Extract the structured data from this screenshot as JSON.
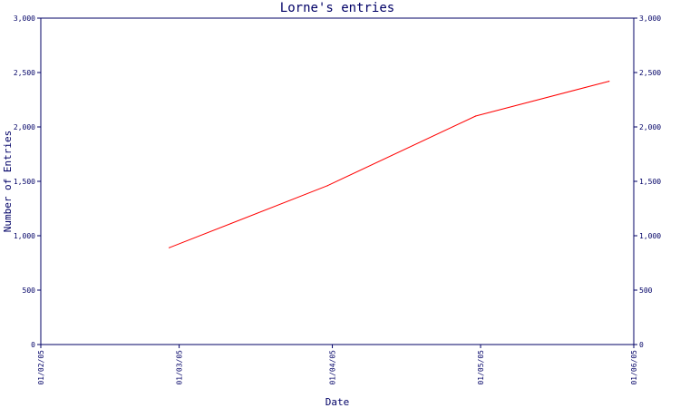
{
  "chart_data": {
    "type": "line",
    "title": "Lorne's entries",
    "xlabel": "Date",
    "ylabel": "Number of Entries",
    "x_ticks": [
      "01/02/05",
      "01/03/05",
      "01/04/05",
      "01/05/05",
      "01/06/05"
    ],
    "xlim": [
      "2005-02-01",
      "2005-06-01"
    ],
    "ylim": [
      0,
      3000
    ],
    "y_ticks": [
      "0",
      "500",
      "1,000",
      "1,500",
      "2,000",
      "2,500",
      "3,000"
    ],
    "y_tick_values": [
      0,
      500,
      1000,
      1500,
      2000,
      2500,
      3000
    ],
    "y_axis_right": true,
    "grid": false,
    "line_color": "#ff0000",
    "axis_color": "#000066",
    "series": [
      {
        "x": [
          "2005-02-27",
          "2005-03-31",
          "2005-04-30",
          "2005-05-27"
        ],
        "y": [
          890,
          1460,
          2100,
          2420
        ]
      }
    ]
  }
}
